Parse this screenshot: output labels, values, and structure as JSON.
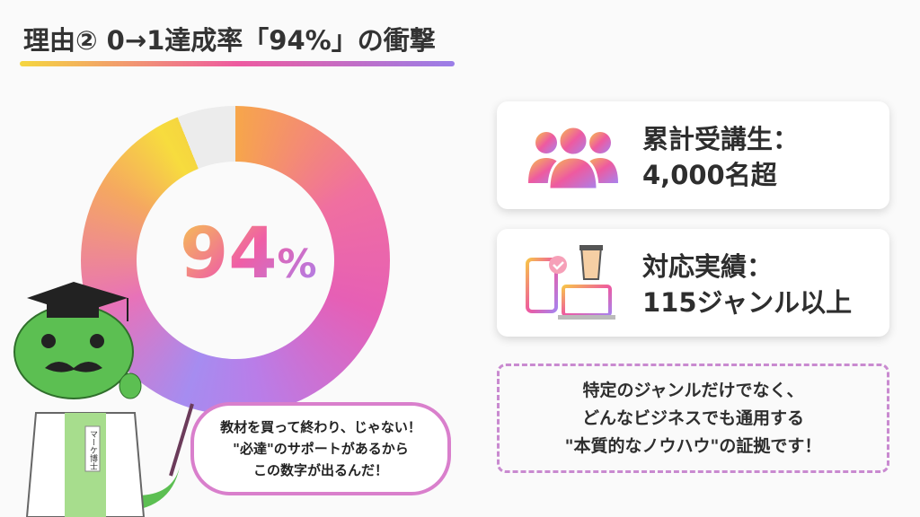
{
  "title": "理由② 0→1達成率「94%」の衝撃",
  "donut": {
    "value_percent": 94,
    "label_number": "94",
    "label_unit": "%",
    "colors": [
      "#f5d63f",
      "#ef5ea6",
      "#a882ee"
    ],
    "remainder_color": "#ececec"
  },
  "cards": [
    {
      "icon": "users-icon",
      "line1": "累計受講生：",
      "line2": "4,000名超"
    },
    {
      "icon": "devices-coffee-icon",
      "line1": "対応実績：",
      "line2": "115ジャンル以上"
    }
  ],
  "note": {
    "line1": "特定のジャンルだけでなく、",
    "line2": "どんなビジネスでも通用する",
    "line3": "\"本質的なノウハウ\"の証拠です！"
  },
  "bubble": {
    "line1": "教材を買って終わり、じゃない！",
    "line2": "\"必達\"のサポートがあるから",
    "line3": "この数字が出るんだ！"
  },
  "mascot": {
    "badge_text": "マーケ博士"
  }
}
